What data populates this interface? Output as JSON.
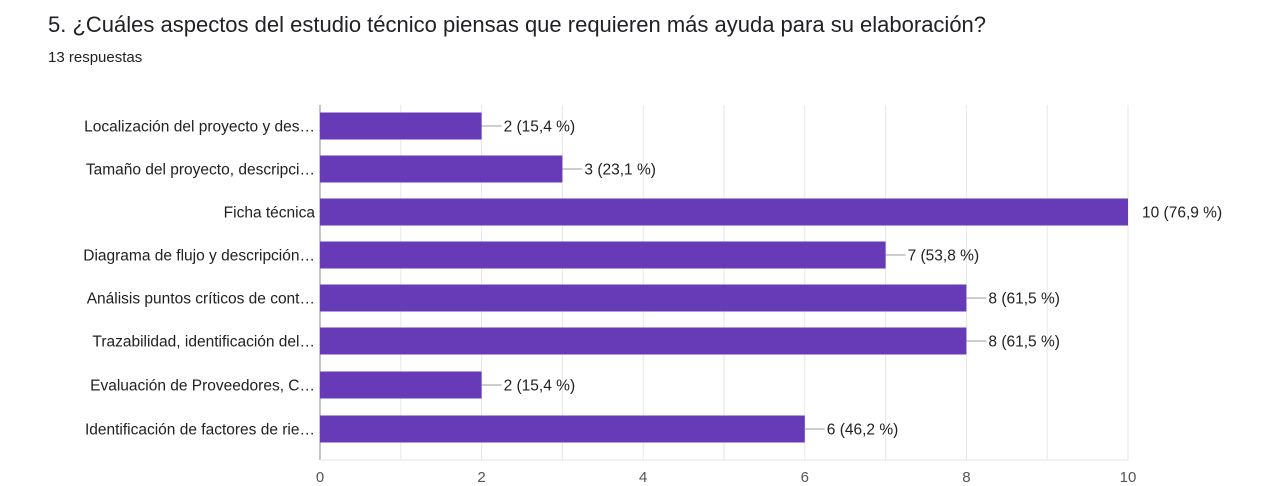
{
  "question": {
    "title": "5. ¿Cuáles aspectos del estudio técnico piensas que requieren más ayuda para  su elaboración?",
    "responses": "13 respuestas"
  },
  "colors": {
    "bar": "#673ab7",
    "grid": "#e6e6e6",
    "axis": "#9e9e9e"
  },
  "chart_data": {
    "type": "bar",
    "orientation": "horizontal",
    "title": "5. ¿Cuáles aspectos del estudio técnico piensas que requieren más ayuda para  su elaboración?",
    "subtitle": "13 respuestas",
    "categories": [
      "Localización del proyecto y des…",
      "Tamaño del proyecto, descripci…",
      "Ficha técnica",
      "Diagrama de flujo y descripción…",
      "Análisis puntos críticos de cont…",
      "Trazabilidad, identificación del…",
      "Evaluación de Proveedores, C…",
      "Identificación de factores de rie…"
    ],
    "values": [
      2,
      3,
      10,
      7,
      8,
      8,
      2,
      6
    ],
    "data_labels": [
      "2 (15,4 %)",
      "3 (23,1 %)",
      "10 (76,9 %)",
      "7 (53,8 %)",
      "8 (61,5 %)",
      "8 (61,5 %)",
      "2 (15,4 %)",
      "6 (46,2 %)"
    ],
    "xlim": [
      0,
      10
    ],
    "xticks": [
      0,
      2,
      4,
      6,
      8,
      10
    ],
    "xlabel": "",
    "ylabel": "",
    "grid": true
  }
}
